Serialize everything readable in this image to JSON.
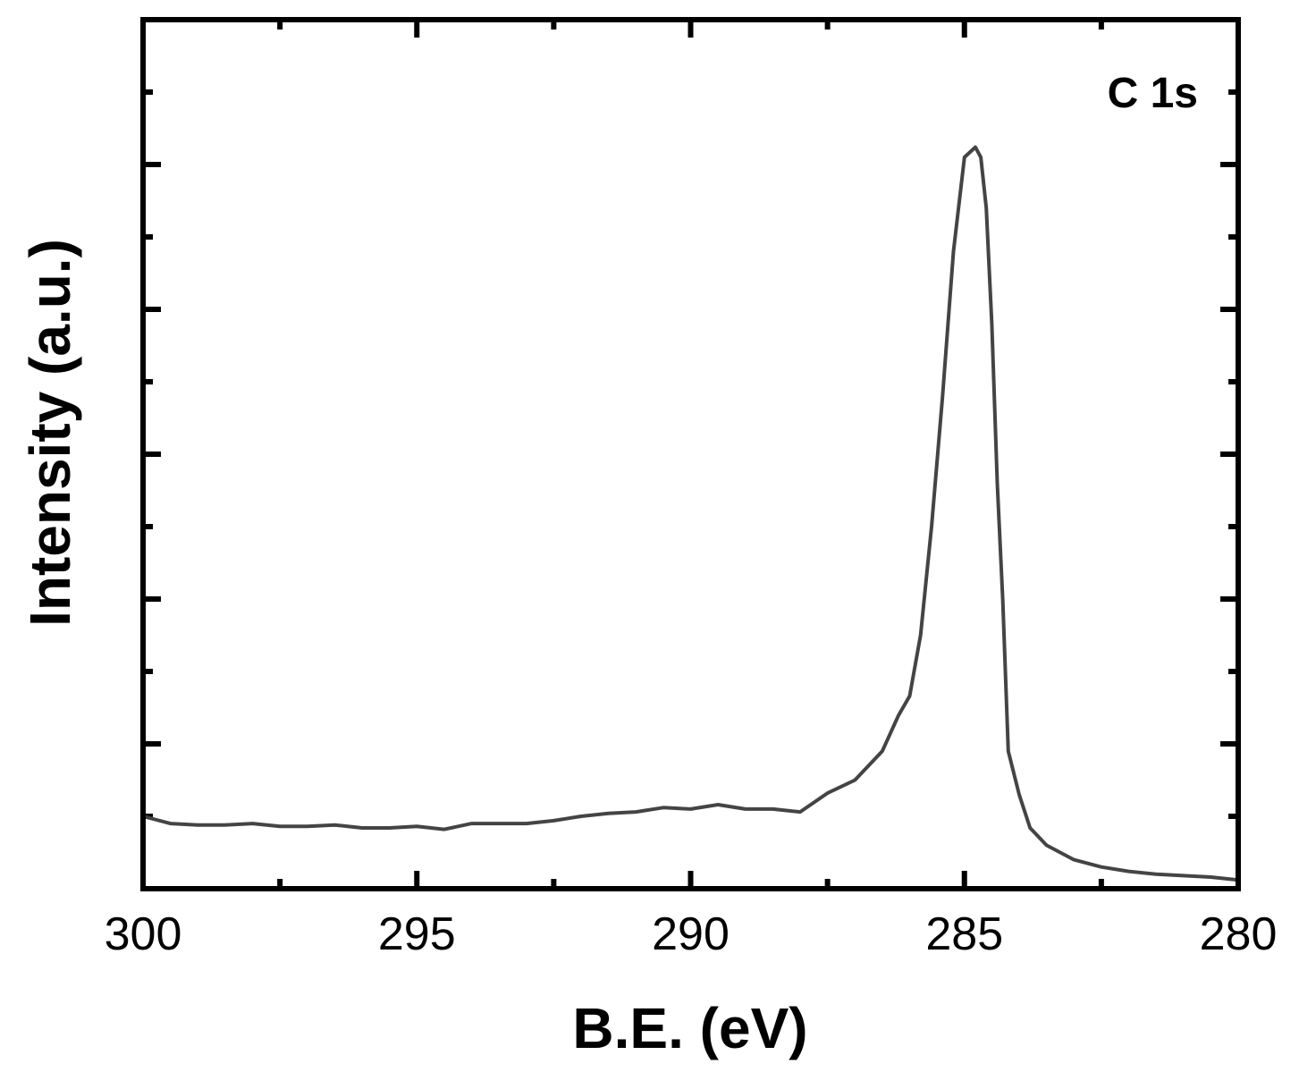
{
  "chart_data": {
    "type": "line",
    "title": "",
    "xlabel": "B.E. (eV)",
    "ylabel": "Intensity (a.u.)",
    "annotation": "C 1s",
    "xlim": [
      300,
      280
    ],
    "x_reversed": true,
    "ylim": [
      0,
      6
    ],
    "y_tick_labels_shown": false,
    "x_ticks": [
      "300",
      "295",
      "290",
      "285",
      "280"
    ],
    "series": [
      {
        "color": "#444444",
        "x": [
          300,
          299.5,
          299,
          298.5,
          298,
          297.5,
          297,
          296.5,
          296,
          295.5,
          295,
          294.5,
          294,
          293.5,
          293,
          292.5,
          292,
          291.5,
          291,
          290.5,
          290,
          289.5,
          289,
          288.5,
          288,
          287.5,
          287,
          286.5,
          286.2,
          286,
          285.8,
          285.6,
          285.4,
          285.2,
          285,
          284.8,
          284.7,
          284.6,
          284.5,
          284.4,
          284.3,
          284.2,
          284,
          283.8,
          283.5,
          283,
          282.5,
          282,
          281.5,
          281,
          280.5,
          280
        ],
        "y": [
          0.5,
          0.45,
          0.44,
          0.44,
          0.45,
          0.43,
          0.43,
          0.44,
          0.42,
          0.42,
          0.43,
          0.41,
          0.45,
          0.45,
          0.45,
          0.47,
          0.5,
          0.52,
          0.53,
          0.56,
          0.55,
          0.58,
          0.55,
          0.55,
          0.53,
          0.66,
          0.75,
          0.95,
          1.2,
          1.33,
          1.75,
          2.5,
          3.4,
          4.4,
          5.05,
          5.12,
          5.05,
          4.7,
          3.9,
          2.8,
          2.0,
          0.95,
          0.65,
          0.42,
          0.3,
          0.2,
          0.15,
          0.12,
          0.1,
          0.09,
          0.08,
          0.06
        ]
      }
    ]
  }
}
